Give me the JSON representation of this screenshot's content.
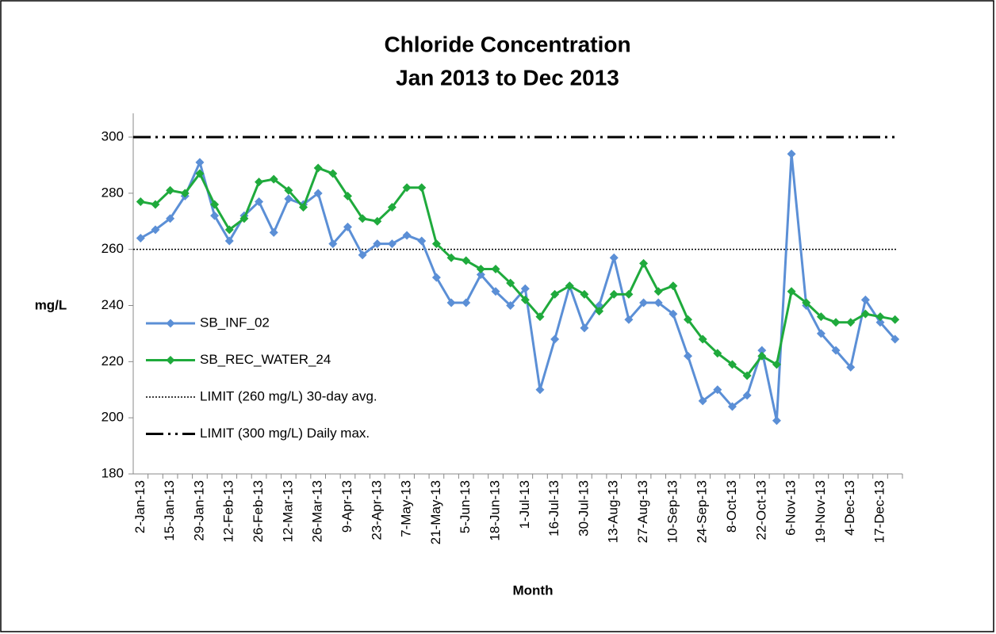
{
  "chart_data": {
    "type": "line",
    "title": "Chloride Concentration",
    "subtitle": "Jan 2013 to Dec 2013",
    "xlabel": "Month",
    "ylabel": "mg/L",
    "categories": [
      "2-Jan-13",
      null,
      "15-Jan-13",
      null,
      "29-Jan-13",
      null,
      "12-Feb-13",
      null,
      "26-Feb-13",
      null,
      "12-Mar-13",
      null,
      "26-Mar-13",
      null,
      "9-Apr-13",
      null,
      "23-Apr-13",
      null,
      "7-May-13",
      null,
      "21-May-13",
      null,
      "5-Jun-13",
      null,
      "18-Jun-13",
      null,
      "1-Jul-13",
      null,
      "16-Jul-13",
      null,
      "30-Jul-13",
      null,
      "13-Aug-13",
      null,
      "27-Aug-13",
      null,
      "10-Sep-13",
      null,
      "24-Sep-13",
      null,
      "8-Oct-13",
      null,
      "22-Oct-13",
      null,
      "6-Nov-13",
      null,
      "19-Nov-13",
      null,
      "4-Dec-13",
      null,
      "17-Dec-13",
      null
    ],
    "series": [
      {
        "name": "SB_INF_02",
        "color": "#5b8fd6",
        "values": [
          264,
          267,
          271,
          279,
          291,
          272,
          263,
          272,
          277,
          266,
          278,
          276,
          280,
          262,
          268,
          258,
          262,
          262,
          265,
          263,
          250,
          241,
          241,
          251,
          245,
          240,
          246,
          210,
          228,
          247,
          232,
          240,
          257,
          235,
          241,
          241,
          237,
          222,
          206,
          210,
          204,
          208,
          224,
          199,
          294,
          240,
          230,
          224,
          218,
          242,
          234,
          228
        ]
      },
      {
        "name": "SB_REC_WATER_24",
        "color": "#1faa3c",
        "values": [
          277,
          276,
          281,
          280,
          287,
          276,
          267,
          271,
          284,
          285,
          281,
          275,
          289,
          287,
          279,
          271,
          270,
          275,
          282,
          282,
          262,
          257,
          256,
          253,
          253,
          248,
          242,
          236,
          244,
          247,
          244,
          238,
          244,
          244,
          255,
          245,
          247,
          235,
          228,
          223,
          219,
          215,
          222,
          219,
          245,
          241,
          236,
          234,
          234,
          237,
          236,
          235
        ]
      }
    ],
    "reference_lines": [
      {
        "name": "LIMIT (260 mg/L) 30-day avg.",
        "value": 260,
        "style": "dotted",
        "color": "#000000"
      },
      {
        "name": "LIMIT (300 mg/L) Daily max.",
        "value": 300,
        "style": "dash-dot-dot",
        "color": "#000000"
      }
    ],
    "ylim": [
      180,
      300
    ],
    "yticks": [
      180,
      200,
      220,
      240,
      260,
      280,
      300
    ],
    "grid": false,
    "legend": "left"
  }
}
